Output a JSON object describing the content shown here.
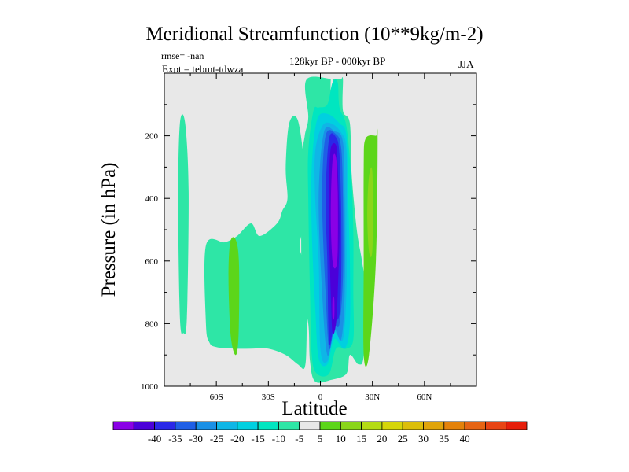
{
  "chart_data": {
    "type": "contour",
    "title": "Meridional Streamfunction (10**9kg/m-2)",
    "annotations": {
      "rmse": "rmse= -nan",
      "expt": "Expt = tebmt-tdwza",
      "period": "128kyr BP - 000kyr BP",
      "season": "JJA"
    },
    "xlabel": "Latitude",
    "ylabel": "Pressure (in hPa)",
    "xlim": [
      -90,
      90
    ],
    "ylim": [
      1000,
      0
    ],
    "x_ticks": [
      {
        "value": -60,
        "label": "60S"
      },
      {
        "value": -30,
        "label": "30S"
      },
      {
        "value": 0,
        "label": "0"
      },
      {
        "value": 30,
        "label": "30N"
      },
      {
        "value": 60,
        "label": "60N"
      }
    ],
    "y_ticks": [
      {
        "value": 200,
        "label": "200"
      },
      {
        "value": 400,
        "label": "400"
      },
      {
        "value": 600,
        "label": "600"
      },
      {
        "value": 800,
        "label": "800"
      },
      {
        "value": 1000,
        "label": "1000"
      }
    ],
    "colorbar": {
      "colors": [
        "#8a00e6",
        "#4b00d9",
        "#2a28e8",
        "#1f5fe6",
        "#1a90e6",
        "#0fb6e6",
        "#00d0e0",
        "#00e6c0",
        "#2ee6a6",
        "#e8e8e8",
        "#5cd61a",
        "#8ad61a",
        "#b4dc14",
        "#d6d60a",
        "#dcbe0a",
        "#e0a40a",
        "#e4820a",
        "#e66414",
        "#e84414",
        "#e61e0a"
      ],
      "labels": [
        "-40",
        "-35",
        "-30",
        "-25",
        "-20",
        "-15",
        "-10",
        "-5",
        "5",
        "10",
        "15",
        "20",
        "25",
        "30",
        "35",
        "40"
      ]
    },
    "regions": [
      {
        "name": "cyan-band-80s",
        "level": -5,
        "color": "#2ee6a6",
        "points": [
          [
            -81,
            160
          ],
          [
            -78,
            160
          ],
          [
            -76,
            380
          ],
          [
            -77,
            780
          ],
          [
            -79,
            830
          ],
          [
            -81,
            780
          ],
          [
            -82,
            400
          ]
        ]
      },
      {
        "name": "cyan-band-mid",
        "level": -5,
        "color": "#2ee6a6",
        "points": [
          [
            -18,
            160
          ],
          [
            -13,
            150
          ],
          [
            -9,
            300
          ],
          [
            -7,
            430
          ],
          [
            -9,
            480
          ],
          [
            -12,
            550
          ],
          [
            -10,
            600
          ],
          [
            -8,
            680
          ],
          [
            -8,
            850
          ],
          [
            -9,
            940
          ],
          [
            -13,
            930
          ],
          [
            -20,
            900
          ],
          [
            -30,
            880
          ],
          [
            -40,
            880
          ],
          [
            -50,
            880
          ],
          [
            -60,
            875
          ],
          [
            -64,
            860
          ],
          [
            -66,
            800
          ],
          [
            -66,
            550
          ],
          [
            -55,
            540
          ],
          [
            -48,
            520
          ],
          [
            -40,
            480
          ],
          [
            -35,
            520
          ],
          [
            -25,
            480
          ],
          [
            -22,
            440
          ],
          [
            -19,
            400
          ],
          [
            -20,
            300
          ]
        ]
      },
      {
        "name": "cyan-column",
        "level": -5,
        "color": "#2ee6a6",
        "points": [
          [
            -8,
            20
          ],
          [
            8,
            20
          ],
          [
            11,
            20
          ],
          [
            12,
            20
          ],
          [
            13,
            20
          ],
          [
            13,
            120
          ],
          [
            17,
            160
          ],
          [
            18,
            320
          ],
          [
            21,
            500
          ],
          [
            24,
            600
          ],
          [
            26,
            700
          ],
          [
            25,
            900
          ],
          [
            22,
            930
          ],
          [
            17,
            900
          ],
          [
            15,
            960
          ],
          [
            6,
            980
          ],
          [
            -3,
            985
          ],
          [
            -6,
            920
          ],
          [
            -7,
            800
          ],
          [
            -11,
            700
          ],
          [
            -11,
            600
          ],
          [
            -11,
            300
          ],
          [
            -9,
            200
          ],
          [
            -7,
            140
          ]
        ]
      },
      {
        "name": "white-strip",
        "level": 0,
        "color": "#e8e8e8",
        "points": [
          [
            6,
            20
          ],
          [
            7,
            20
          ],
          [
            7,
            70
          ],
          [
            6,
            70
          ]
        ]
      },
      {
        "name": "teal-level",
        "level": -10,
        "color": "#00e6c0",
        "points": [
          [
            -4,
            120
          ],
          [
            -1,
            110
          ],
          [
            4,
            100
          ],
          [
            7,
            30
          ],
          [
            10,
            30
          ],
          [
            11,
            110
          ],
          [
            15,
            170
          ],
          [
            18,
            350
          ],
          [
            19,
            520
          ],
          [
            19,
            700
          ],
          [
            19,
            850
          ],
          [
            15,
            880
          ],
          [
            9,
            880
          ],
          [
            5,
            960
          ],
          [
            -2,
            960
          ],
          [
            -5,
            900
          ],
          [
            -6,
            700
          ],
          [
            -7,
            400
          ],
          [
            -7,
            250
          ]
        ]
      },
      {
        "name": "cyan-level",
        "level": -15,
        "color": "#00d0e0",
        "points": [
          [
            -2,
            150
          ],
          [
            4,
            130
          ],
          [
            11,
            160
          ],
          [
            15,
            200
          ],
          [
            16,
            400
          ],
          [
            17,
            600
          ],
          [
            17,
            800
          ],
          [
            14,
            880
          ],
          [
            8,
            850
          ],
          [
            4,
            930
          ],
          [
            -1,
            910
          ],
          [
            -3,
            750
          ],
          [
            -5,
            500
          ],
          [
            -5,
            300
          ]
        ]
      },
      {
        "name": "sky-level",
        "level": -20,
        "color": "#0fb6e6",
        "points": [
          [
            1,
            170
          ],
          [
            6,
            160
          ],
          [
            12,
            190
          ],
          [
            15,
            250
          ],
          [
            15,
            500
          ],
          [
            15,
            700
          ],
          [
            13,
            850
          ],
          [
            8,
            830
          ],
          [
            4,
            920
          ],
          [
            0,
            880
          ],
          [
            -1,
            600
          ],
          [
            -3,
            400
          ],
          [
            -3,
            250
          ]
        ]
      },
      {
        "name": "light-blue-level",
        "level": -25,
        "color": "#1a90e6",
        "points": [
          [
            2,
            190
          ],
          [
            8,
            185
          ],
          [
            13,
            220
          ],
          [
            14,
            400
          ],
          [
            14,
            700
          ],
          [
            12,
            850
          ],
          [
            8,
            820
          ],
          [
            4,
            900
          ],
          [
            1,
            700
          ],
          [
            -1,
            400
          ]
        ]
      },
      {
        "name": "blue-level",
        "level": -30,
        "color": "#1f5fe6",
        "points": [
          [
            3,
            200
          ],
          [
            9,
            195
          ],
          [
            12,
            240
          ],
          [
            13,
            400
          ],
          [
            13,
            650
          ],
          [
            11,
            800
          ],
          [
            8,
            810
          ],
          [
            5,
            880
          ],
          [
            3,
            700
          ],
          [
            1,
            400
          ]
        ]
      },
      {
        "name": "dark-blue-level",
        "level": -35,
        "color": "#2a28e8",
        "points": [
          [
            5,
            210
          ],
          [
            9,
            205
          ],
          [
            11,
            260
          ],
          [
            12,
            450
          ],
          [
            12,
            650
          ],
          [
            11,
            770
          ],
          [
            8,
            800
          ],
          [
            5,
            860
          ],
          [
            4,
            600
          ],
          [
            3,
            400
          ]
        ]
      },
      {
        "name": "indigo-level",
        "level": -40,
        "color": "#4b00d9",
        "points": [
          [
            6,
            240
          ],
          [
            9,
            230
          ],
          [
            10,
            300
          ],
          [
            11,
            500
          ],
          [
            10,
            700
          ],
          [
            9,
            800
          ],
          [
            7,
            830
          ],
          [
            6,
            700
          ],
          [
            5,
            500
          ],
          [
            5,
            350
          ]
        ]
      },
      {
        "name": "violet-core",
        "level": -45,
        "color": "#8a00e6",
        "points": [
          [
            7,
            280
          ],
          [
            9,
            270
          ],
          [
            10,
            380
          ],
          [
            10,
            560
          ],
          [
            9,
            620
          ],
          [
            7,
            600
          ],
          [
            6,
            450
          ]
        ]
      },
      {
        "name": "violet-lower",
        "level": -45,
        "color": "#8a00e6",
        "points": [
          [
            7,
            720
          ],
          [
            8,
            720
          ],
          [
            8,
            780
          ],
          [
            7,
            780
          ]
        ]
      },
      {
        "name": "green-band-20n",
        "level": 5,
        "color": "#5cd61a",
        "points": [
          [
            26,
            210
          ],
          [
            32,
            200
          ],
          [
            33,
            210
          ],
          [
            32,
            600
          ],
          [
            28,
            900
          ],
          [
            25,
            900
          ],
          [
            25,
            600
          ],
          [
            25,
            300
          ]
        ]
      },
      {
        "name": "lime-core-20n",
        "level": 10,
        "color": "#8ad61a",
        "points": [
          [
            28,
            330
          ],
          [
            30,
            320
          ],
          [
            30,
            560
          ],
          [
            28,
            570
          ],
          [
            27,
            450
          ]
        ]
      },
      {
        "name": "green-blob-50s",
        "level": 5,
        "color": "#5cd61a",
        "points": [
          [
            -52,
            540
          ],
          [
            -49,
            530
          ],
          [
            -47,
            600
          ],
          [
            -47,
            800
          ],
          [
            -48,
            890
          ],
          [
            -50,
            890
          ],
          [
            -52,
            820
          ],
          [
            -53,
            650
          ]
        ]
      }
    ]
  }
}
